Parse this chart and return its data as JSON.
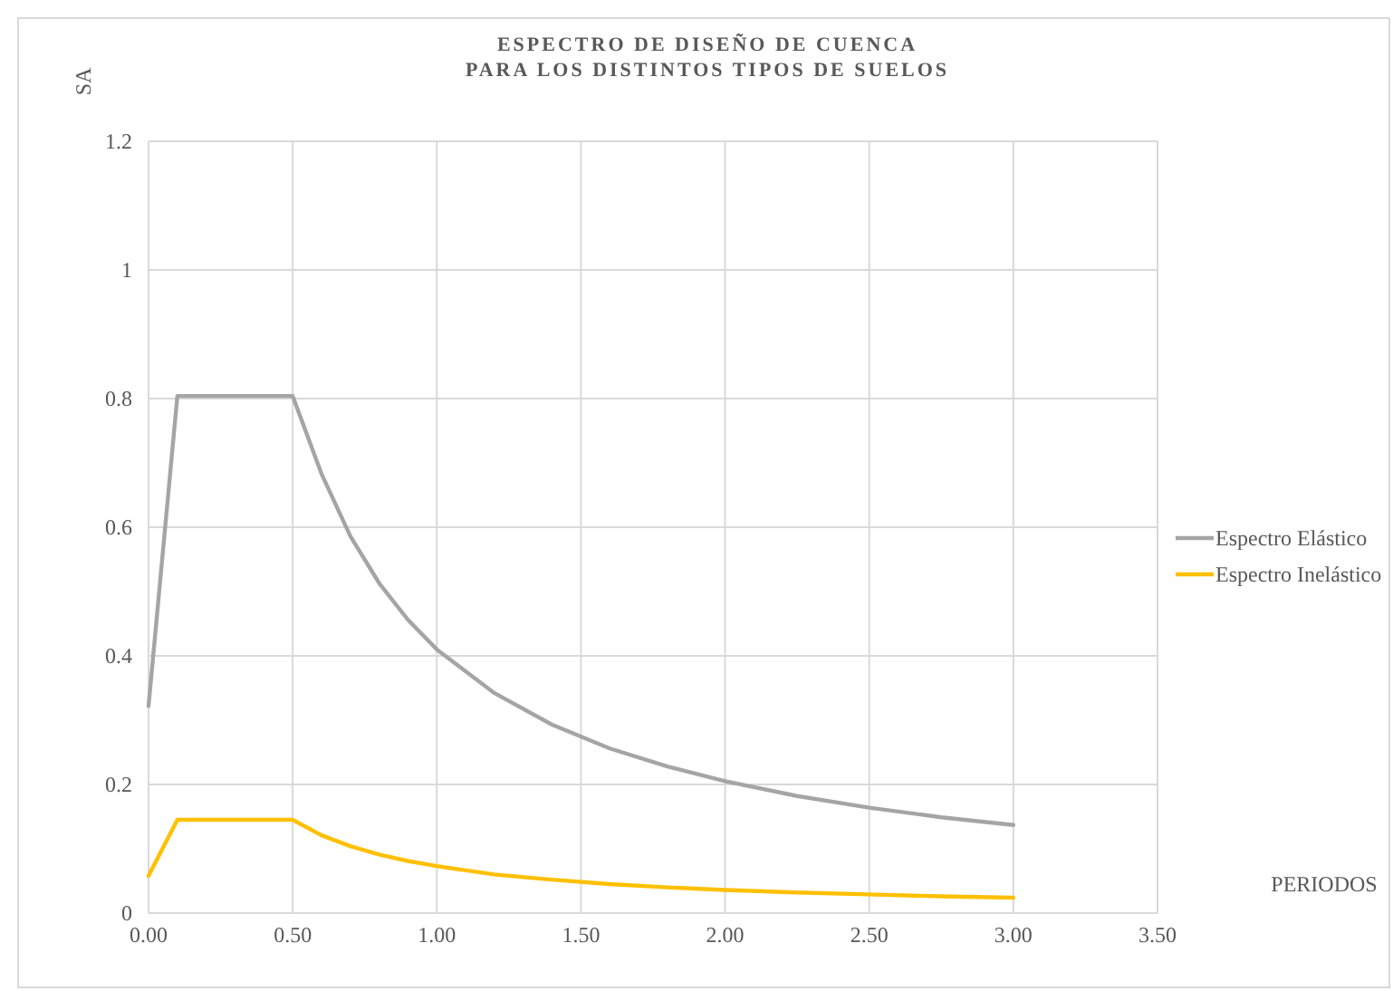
{
  "chart_data": {
    "type": "line",
    "title": "ESPECTRO DE DISEÑO DE CUENCA\nPARA LOS DISTINTOS TIPOS DE SUELOS",
    "xlabel": "PERIODOS",
    "ylabel": "SA",
    "x": [
      0,
      0.1,
      0.5,
      0.6,
      0.7,
      0.8,
      0.9,
      1.0,
      1.2,
      1.4,
      1.6,
      1.8,
      2.0,
      2.25,
      2.5,
      2.75,
      3.0
    ],
    "series": [
      {
        "name": "Espectro Elástico",
        "color": "#a5a5a5",
        "values": [
          0.322,
          0.804,
          0.804,
          0.683,
          0.586,
          0.513,
          0.456,
          0.41,
          0.342,
          0.293,
          0.256,
          0.228,
          0.205,
          0.182,
          0.164,
          0.149,
          0.137
        ]
      },
      {
        "name": "Espectro Inelástico",
        "color": "#ffc000",
        "values": [
          0.058,
          0.145,
          0.145,
          0.121,
          0.104,
          0.091,
          0.081,
          0.073,
          0.06,
          0.052,
          0.045,
          0.04,
          0.036,
          0.032,
          0.029,
          0.026,
          0.024
        ]
      }
    ],
    "xlim": [
      0,
      3.5
    ],
    "xticks": [
      {
        "value": 0,
        "label": "0.00"
      },
      {
        "value": 0.5,
        "label": "0.50"
      },
      {
        "value": 1,
        "label": "1.00"
      },
      {
        "value": 1.5,
        "label": "1.50"
      },
      {
        "value": 2,
        "label": "2.00"
      },
      {
        "value": 2.5,
        "label": "2.50"
      },
      {
        "value": 3,
        "label": "3.00"
      },
      {
        "value": 3.5,
        "label": "3.50"
      }
    ],
    "ylim": [
      0,
      1.2
    ],
    "yticks": [
      0,
      0.2,
      0.4,
      0.6,
      0.8,
      1,
      1.2
    ],
    "grid": true,
    "legend": "right",
    "marker": "none",
    "line_style": "solid"
  }
}
